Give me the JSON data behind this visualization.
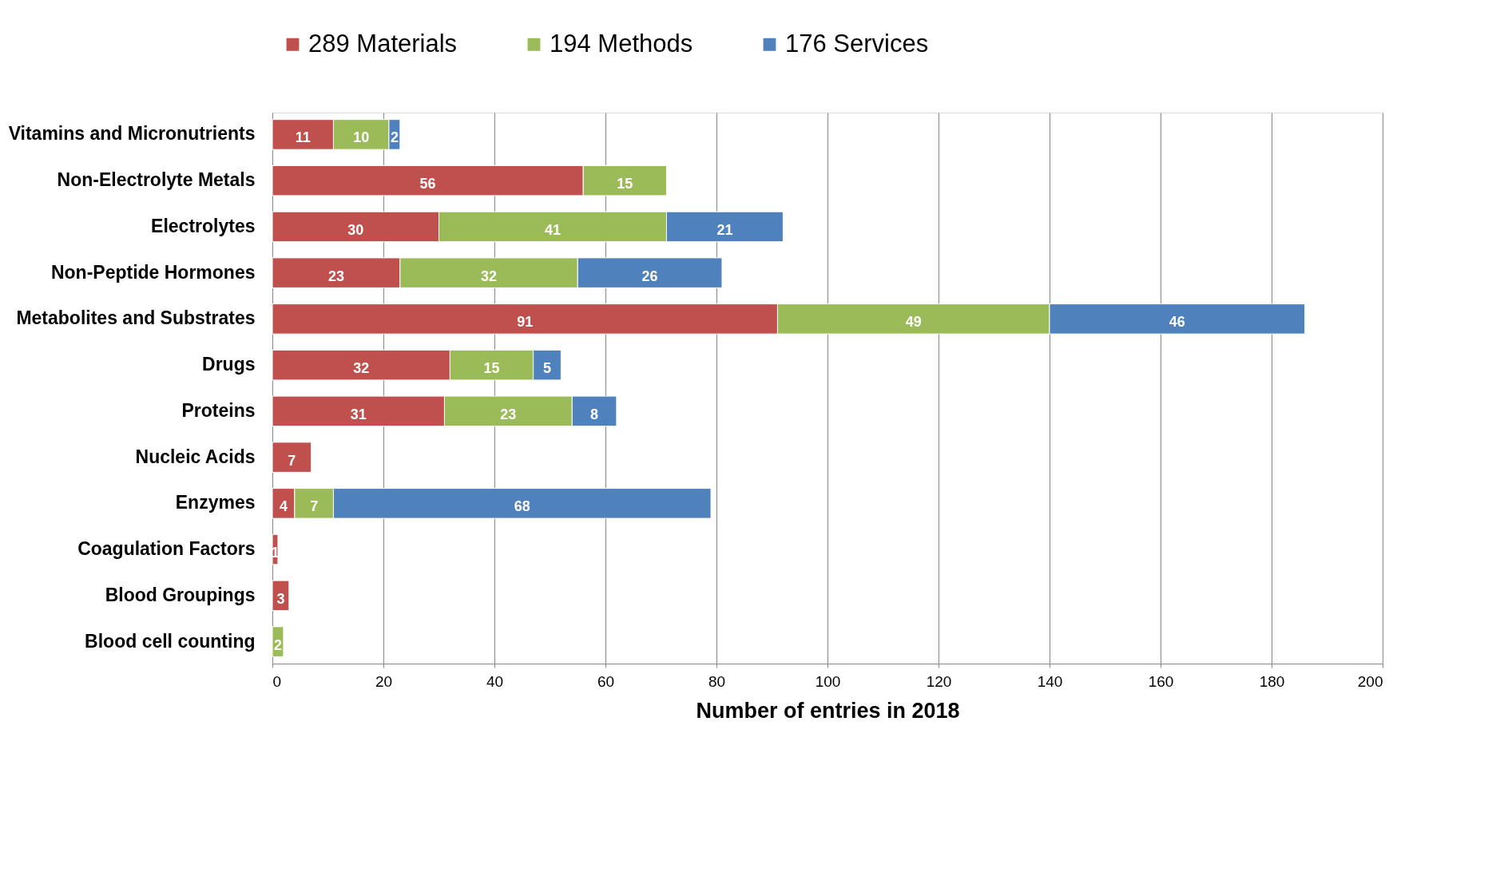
{
  "chart_data": {
    "type": "bar",
    "orientation": "horizontal",
    "stacked": true,
    "xlabel": "Number of  entries in 2018",
    "categories": [
      "Vitamins and Micronutrients",
      "Non-Electrolyte Metals",
      "Electrolytes",
      "Non-Peptide Hormones",
      "Metabolites and Substrates",
      "Drugs",
      "Proteins",
      "Nucleic Acids",
      "Enzymes",
      "Coagulation Factors",
      "Blood Groupings",
      "Blood cell counting"
    ],
    "series": [
      {
        "name": "289 Materials",
        "color": "#c0504d",
        "values": [
          11,
          56,
          30,
          23,
          91,
          32,
          31,
          7,
          4,
          1,
          3,
          null
        ]
      },
      {
        "name": "194 Methods",
        "color": "#9bbb59",
        "values": [
          10,
          15,
          41,
          32,
          49,
          15,
          23,
          null,
          7,
          null,
          null,
          2
        ]
      },
      {
        "name": "176 Services",
        "color": "#4f81bd",
        "values": [
          2,
          null,
          21,
          26,
          46,
          5,
          8,
          null,
          68,
          null,
          null,
          null
        ]
      }
    ],
    "xlim": [
      0,
      200
    ],
    "xticks": [
      0,
      20,
      40,
      60,
      80,
      100,
      120,
      140,
      160,
      180,
      200
    ],
    "grid": "x",
    "legend": "top",
    "data_labels": true
  }
}
